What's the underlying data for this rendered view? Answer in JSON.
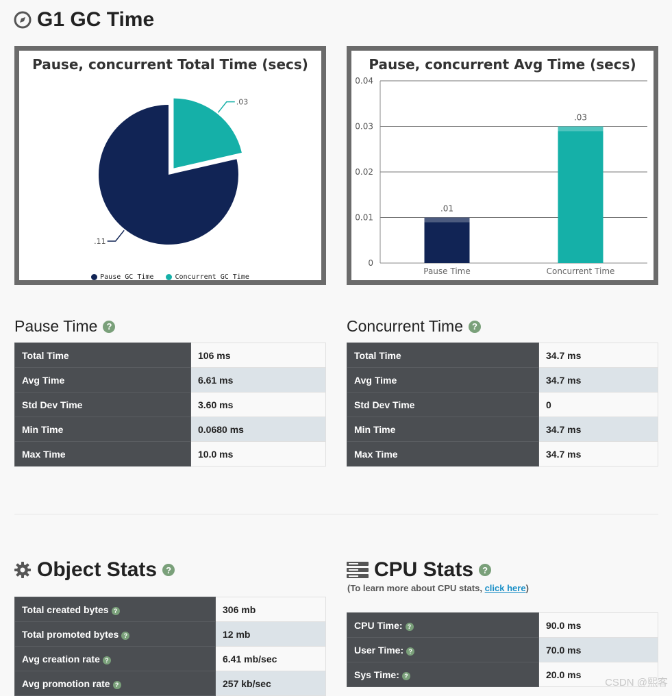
{
  "gc_section": {
    "title": "G1 GC Time",
    "icon": "compass-icon"
  },
  "pie_chart": {
    "title": "Pause, concurrent Total Time (secs)",
    "slice_labels": [
      ".11",
      ".03"
    ],
    "legend": [
      "Pause GC Time",
      "Concurrent GC Time"
    ]
  },
  "bar_chart": {
    "title": "Pause, concurrent Avg Time (secs)",
    "y_ticks": [
      "0.04",
      "0.03",
      "0.02",
      "0.01",
      "0"
    ],
    "categories": [
      "Pause Time",
      "Concurrent Time"
    ],
    "data_labels": [
      ".01",
      ".03"
    ]
  },
  "chart_data": [
    {
      "type": "pie",
      "title": "Pause, concurrent Total Time (secs)",
      "categories": [
        "Pause GC Time",
        "Concurrent GC Time"
      ],
      "values": [
        0.11,
        0.03
      ],
      "data_labels": [
        ".11",
        ".03"
      ],
      "colors": [
        "#112455",
        "#15b0a8"
      ],
      "legend_position": "bottom"
    },
    {
      "type": "bar",
      "title": "Pause, concurrent Avg Time (secs)",
      "categories": [
        "Pause Time",
        "Concurrent Time"
      ],
      "values": [
        0.01,
        0.03
      ],
      "data_labels": [
        ".01",
        ".03"
      ],
      "colors": [
        "#112455",
        "#15b0a8"
      ],
      "ylim": [
        0,
        0.04
      ],
      "y_ticks": [
        0,
        0.01,
        0.02,
        0.03,
        0.04
      ],
      "grid": true
    }
  ],
  "pause_time": {
    "title": "Pause Time",
    "rows": [
      {
        "label": "Total Time",
        "value": "106 ms"
      },
      {
        "label": "Avg Time",
        "value": "6.61 ms"
      },
      {
        "label": "Std Dev Time",
        "value": "3.60 ms"
      },
      {
        "label": "Min Time",
        "value": "0.0680 ms"
      },
      {
        "label": "Max Time",
        "value": "10.0 ms"
      }
    ]
  },
  "concurrent_time": {
    "title": "Concurrent Time",
    "rows": [
      {
        "label": "Total Time",
        "value": "34.7 ms"
      },
      {
        "label": "Avg Time",
        "value": "34.7 ms"
      },
      {
        "label": "Std Dev Time",
        "value": "0"
      },
      {
        "label": "Min Time",
        "value": "34.7 ms"
      },
      {
        "label": "Max Time",
        "value": "34.7 ms"
      }
    ]
  },
  "object_stats": {
    "title": "Object Stats",
    "icon": "gear-icon",
    "rows": [
      {
        "label": "Total created bytes",
        "value": "306 mb"
      },
      {
        "label": "Total promoted bytes",
        "value": "12 mb"
      },
      {
        "label": "Avg creation rate",
        "value": "6.41 mb/sec"
      },
      {
        "label": "Avg promotion rate",
        "value": "257 kb/sec"
      }
    ]
  },
  "cpu_stats": {
    "title": "CPU Stats",
    "icon": "server-icon",
    "note_prefix": "(To learn more about CPU stats, ",
    "note_link": "click here",
    "note_suffix": ")",
    "rows": [
      {
        "label": "CPU Time:",
        "value": "90.0 ms"
      },
      {
        "label": "User Time:",
        "value": "70.0 ms"
      },
      {
        "label": "Sys Time:",
        "value": "20.0 ms"
      }
    ]
  },
  "help_glyph": "?",
  "watermark": "CSDN @熙客"
}
